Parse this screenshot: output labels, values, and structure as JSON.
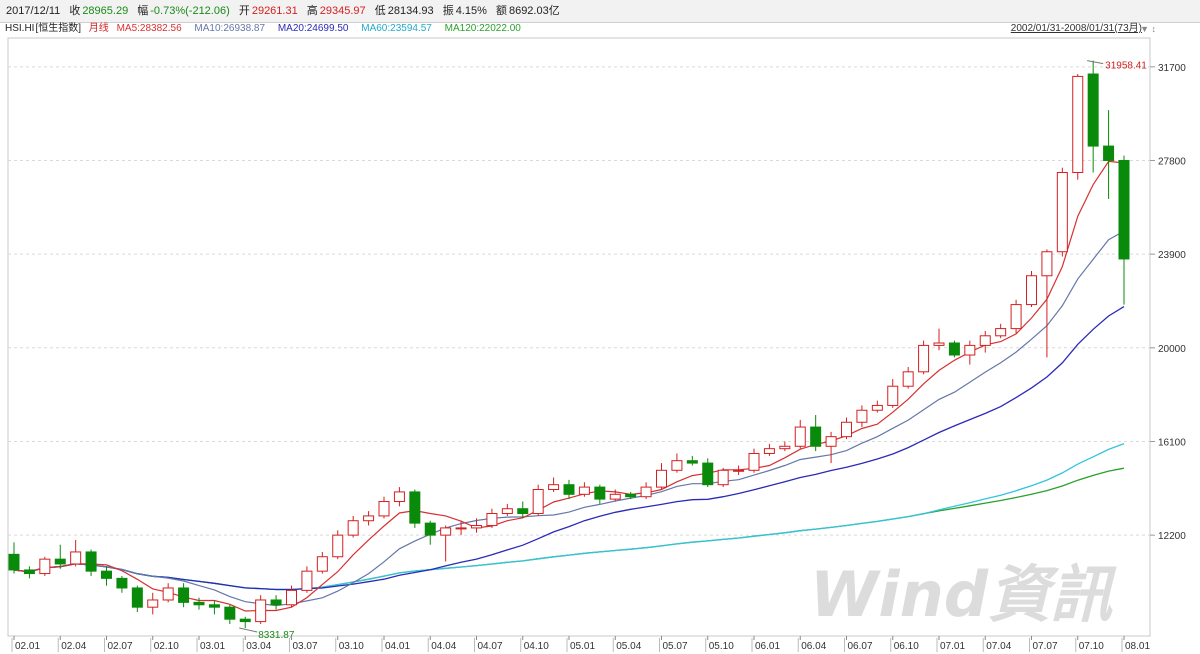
{
  "topbar": {
    "date": "2017/12/11",
    "close_label": "收",
    "close_value": "28965.29",
    "change_label": "幅",
    "change_value": "-0.73%(-212.06)",
    "open_label": "开",
    "open_value": "29261.31",
    "high_label": "高",
    "high_value": "29345.97",
    "low_label": "低",
    "low_value": "28134.93",
    "amp_label": "振",
    "amp_value": "4.15%",
    "amount_label": "额",
    "amount_value": "8692.03亿"
  },
  "legend": {
    "symbol": "HSI.HI",
    "name": "[恒生指数]",
    "period": "月线",
    "ma5": "MA5:28382.56",
    "ma10": "MA10:26938.87",
    "ma20": "MA20:24699.50",
    "ma60": "MA60:23594.57",
    "ma120": "MA120:22022.00"
  },
  "range_label": "2002/01/31-2008/01/31(73月)",
  "watermark": "Wind資訊",
  "colors": {
    "up": "#d42020",
    "down": "#0a8a0a",
    "ma5": "#d83030",
    "ma10": "#6677aa",
    "ma20": "#2a2ab8",
    "ma60": "#33c4dd",
    "ma120": "#2aa02a",
    "grid": "#d9d9d9"
  },
  "chart_data": {
    "type": "candlestick",
    "ylim": [
      8000,
      32900
    ],
    "y_ticks": [
      "31700",
      "27800",
      "23900",
      "20000",
      "16100",
      "12200"
    ],
    "x_ticks": [
      "02.01",
      "02.04",
      "02.07",
      "02.10",
      "03.01",
      "03.04",
      "03.07",
      "03.10",
      "04.01",
      "04.04",
      "04.07",
      "04.10",
      "05.01",
      "05.04",
      "05.07",
      "05.10",
      "06.01",
      "06.04",
      "06.07",
      "06.10",
      "07.01",
      "07.04",
      "07.07",
      "07.10",
      "08.01"
    ],
    "annotations": {
      "high": "31958.41",
      "low": "8331.87"
    },
    "candles": [
      [
        11400,
        10750,
        11900,
        10600
      ],
      [
        10750,
        10600,
        10900,
        10400
      ],
      [
        10600,
        11200,
        11300,
        10500
      ],
      [
        11200,
        11000,
        11800,
        10800
      ],
      [
        11000,
        11500,
        12000,
        10900
      ],
      [
        11500,
        10700,
        11600,
        10500
      ],
      [
        10700,
        10400,
        10900,
        10100
      ],
      [
        10400,
        10000,
        10500,
        9800
      ],
      [
        10000,
        9200,
        10100,
        9000
      ],
      [
        9200,
        9500,
        9800,
        8900
      ],
      [
        9500,
        10000,
        10200,
        9400
      ],
      [
        10000,
        9400,
        10200,
        9200
      ],
      [
        9400,
        9300,
        9600,
        9100
      ],
      [
        9300,
        9200,
        9500,
        8900
      ],
      [
        9200,
        8700,
        9300,
        8500
      ],
      [
        8700,
        8600,
        8800,
        8332
      ],
      [
        8600,
        9500,
        9700,
        8500
      ],
      [
        9500,
        9300,
        9700,
        9100
      ],
      [
        9300,
        9900,
        10100,
        9200
      ],
      [
        9900,
        10700,
        10900,
        9800
      ],
      [
        10700,
        11300,
        11500,
        10600
      ],
      [
        11300,
        12200,
        12400,
        11200
      ],
      [
        12200,
        12800,
        13000,
        12100
      ],
      [
        12800,
        13000,
        13200,
        12600
      ],
      [
        13000,
        13600,
        13800,
        12900
      ],
      [
        13600,
        14000,
        14200,
        13400
      ],
      [
        14000,
        12700,
        14100,
        12500
      ],
      [
        12700,
        12200,
        12800,
        11800
      ],
      [
        12200,
        12500,
        12600,
        11100
      ],
      [
        12500,
        12500,
        12800,
        12200
      ],
      [
        12500,
        12600,
        12900,
        12300
      ],
      [
        12600,
        13100,
        13300,
        12500
      ],
      [
        13100,
        13300,
        13500,
        13000
      ],
      [
        13300,
        13100,
        13600,
        12900
      ],
      [
        13100,
        14100,
        14300,
        13000
      ],
      [
        14100,
        14300,
        14600,
        14000
      ],
      [
        14300,
        13900,
        14500,
        13700
      ],
      [
        13900,
        14200,
        14400,
        13800
      ],
      [
        14200,
        13700,
        14300,
        13500
      ],
      [
        13700,
        13900,
        14100,
        13600
      ],
      [
        13900,
        13800,
        14000,
        13700
      ],
      [
        13800,
        14200,
        14400,
        13700
      ],
      [
        14200,
        14900,
        15200,
        14100
      ],
      [
        14900,
        15300,
        15600,
        14800
      ],
      [
        15300,
        15200,
        15500,
        15100
      ],
      [
        15200,
        14300,
        15400,
        14200
      ],
      [
        14300,
        14900,
        15000,
        14200
      ],
      [
        14900,
        14900,
        15100,
        14700
      ],
      [
        14900,
        15600,
        15800,
        14800
      ],
      [
        15600,
        15800,
        16000,
        15500
      ],
      [
        15800,
        15900,
        16100,
        15700
      ],
      [
        15900,
        16700,
        17000,
        15800
      ],
      [
        16700,
        15900,
        17200,
        15700
      ],
      [
        15900,
        16300,
        16500,
        15200
      ],
      [
        16300,
        16900,
        17100,
        16200
      ],
      [
        16900,
        17400,
        17600,
        16700
      ],
      [
        17400,
        17600,
        17800,
        17300
      ],
      [
        17600,
        18400,
        18700,
        17500
      ],
      [
        18400,
        19000,
        19200,
        18300
      ],
      [
        19000,
        20100,
        20300,
        18900
      ],
      [
        20100,
        20200,
        20800,
        19900
      ],
      [
        20200,
        19700,
        20300,
        19600
      ],
      [
        19700,
        20100,
        20300,
        19300
      ],
      [
        20100,
        20500,
        20700,
        19800
      ],
      [
        20500,
        20800,
        21000,
        20400
      ],
      [
        20800,
        21800,
        22000,
        20600
      ],
      [
        21800,
        23000,
        23200,
        21700
      ],
      [
        23000,
        24000,
        24100,
        19600
      ],
      [
        24000,
        27300,
        27500,
        23800
      ],
      [
        27300,
        31300,
        31400,
        27000
      ],
      [
        31400,
        28400,
        31958,
        27300
      ],
      [
        28400,
        27800,
        29900,
        26200
      ],
      [
        27800,
        23700,
        28000,
        21800
      ]
    ]
  }
}
